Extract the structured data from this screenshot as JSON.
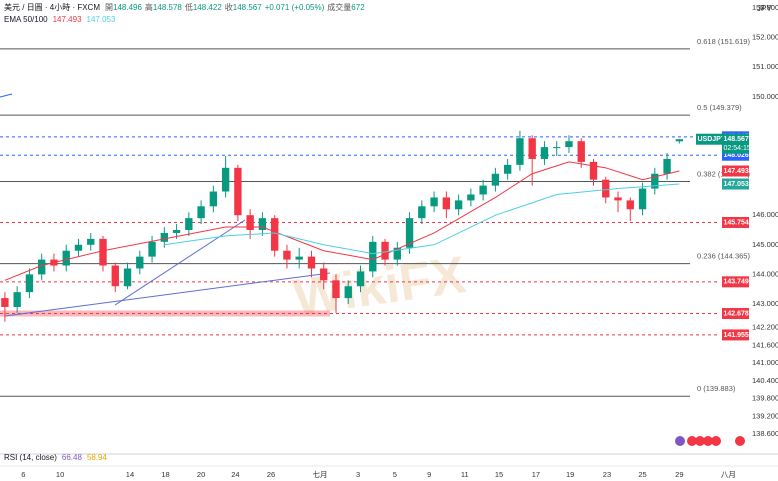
{
  "chart_data": {
    "type": "candlestick",
    "header": {
      "symbol": "美元 / 日圓 · 4小時 · FXCM",
      "ohlc_labels": [
        "開",
        "高",
        "低",
        "收"
      ],
      "change": "+0.071 (+0.05%)",
      "volume_label": "成交量",
      "volume": 672
    },
    "indicator_label": "EMA 50/100",
    "currency": "JPY",
    "watermark": "WikiFX",
    "rsi_label": "RSI (14, close)",
    "rsi_values": [
      66.48,
      58.94
    ],
    "xlim": [
      -0.4,
      60.6
    ],
    "xticks": [
      {
        "value": 1.5,
        "label": "6"
      },
      {
        "value": 4.5,
        "label": "10"
      },
      {
        "value": 10.2,
        "label": "14"
      },
      {
        "value": 13.1,
        "label": "18"
      },
      {
        "value": 16,
        "label": "20"
      },
      {
        "value": 18.8,
        "label": "24"
      },
      {
        "value": 21.7,
        "label": "26"
      },
      {
        "value": 25.7,
        "label": "七月"
      },
      {
        "value": 28.8,
        "label": "3"
      },
      {
        "value": 31.8,
        "label": "5"
      },
      {
        "value": 34.6,
        "label": "9"
      },
      {
        "value": 37.5,
        "label": "11"
      },
      {
        "value": 40.3,
        "label": "15"
      },
      {
        "value": 43.3,
        "label": "17"
      },
      {
        "value": 46.1,
        "label": "19"
      },
      {
        "value": 49.1,
        "label": "23"
      },
      {
        "value": 52,
        "label": "25"
      },
      {
        "value": 55,
        "label": "29"
      },
      {
        "value": 59,
        "label": "八月"
      }
    ],
    "ylim": [
      138.0,
      153.27
    ],
    "yticks": [
      {
        "value": 153,
        "label": "153.000"
      },
      {
        "value": 152,
        "label": "152.000"
      },
      {
        "value": 151,
        "label": "151.000"
      },
      {
        "value": 150,
        "label": "150.000"
      },
      {
        "value": 146,
        "label": "146.000"
      },
      {
        "value": 145,
        "label": "145.000"
      },
      {
        "value": 144,
        "label": "144.000"
      },
      {
        "value": 143,
        "label": "143.000"
      },
      {
        "value": 142.2,
        "label": "142.200"
      },
      {
        "value": 141.6,
        "label": "141.600"
      },
      {
        "value": 141,
        "label": "141.000"
      },
      {
        "value": 140.4,
        "label": "140.400"
      },
      {
        "value": 139.8,
        "label": "139.800"
      },
      {
        "value": 139.2,
        "label": "139.200"
      },
      {
        "value": 138.6,
        "label": "138.600"
      }
    ],
    "open": [
      143.2,
      142.9,
      143.4,
      144.0,
      144.5,
      144.3,
      144.8,
      145.0,
      145.2,
      144.3,
      143.6,
      144.2,
      144.6,
      145.1,
      145.4,
      145.5,
      145.9,
      146.3,
      146.8,
      147.6,
      146.0,
      145.5,
      145.9,
      144.8,
      144.5,
      144.6,
      144.2,
      143.8,
      143.2,
      143.6,
      144.1,
      145.1,
      144.5,
      144.9,
      145.9,
      146.3,
      146.6,
      146.2,
      146.5,
      146.7,
      147.0,
      147.4,
      147.7,
      148.6,
      147.9,
      148.3,
      148.3,
      148.5,
      147.8,
      147.2,
      146.6,
      146.5,
      146.2,
      146.9,
      147.4,
      148.496
    ],
    "high": [
      143.4,
      143.6,
      144.2,
      144.7,
      144.7,
      145.0,
      145.2,
      145.4,
      145.3,
      144.4,
      144.4,
      144.8,
      145.3,
      145.6,
      145.7,
      146.1,
      146.5,
      147.0,
      148.0,
      147.7,
      146.2,
      146.1,
      146.0,
      145.0,
      144.9,
      144.8,
      144.4,
      144.0,
      143.8,
      144.3,
      145.3,
      145.2,
      145.1,
      146.1,
      146.5,
      146.8,
      146.8,
      146.7,
      146.9,
      147.2,
      147.6,
      147.9,
      148.85,
      148.7,
      148.5,
      148.5,
      148.7,
      148.6,
      147.9,
      147.3,
      146.8,
      146.6,
      147.1,
      147.6,
      148.1,
      148.578
    ],
    "low": [
      142.4,
      142.7,
      143.2,
      143.8,
      144.1,
      144.1,
      144.6,
      144.8,
      144.1,
      143.4,
      143.5,
      144.0,
      144.4,
      144.9,
      145.2,
      145.3,
      145.7,
      146.1,
      146.6,
      145.8,
      145.2,
      145.3,
      144.6,
      144.2,
      144.2,
      143.9,
      143.5,
      142.7,
      143.0,
      143.4,
      143.9,
      144.3,
      144.3,
      144.7,
      145.7,
      146.1,
      145.9,
      146.0,
      146.3,
      146.5,
      146.8,
      147.2,
      147.5,
      147.0,
      147.7,
      148.0,
      148.1,
      147.6,
      147.0,
      146.4,
      146.1,
      145.8,
      146.0,
      146.7,
      147.2,
      148.422
    ],
    "close": [
      142.9,
      143.4,
      144.0,
      144.5,
      144.3,
      144.8,
      145.0,
      145.2,
      144.3,
      143.6,
      144.2,
      144.6,
      145.1,
      145.4,
      145.5,
      145.9,
      146.3,
      146.8,
      147.6,
      146.0,
      145.5,
      145.9,
      144.8,
      144.5,
      144.6,
      144.2,
      143.8,
      143.2,
      143.6,
      144.1,
      145.1,
      144.5,
      144.9,
      145.9,
      146.3,
      146.6,
      146.2,
      146.5,
      146.7,
      147.0,
      147.4,
      147.7,
      148.6,
      147.9,
      148.3,
      148.3,
      148.5,
      147.8,
      147.2,
      146.6,
      146.5,
      146.2,
      146.9,
      147.4,
      147.9,
      148.567
    ],
    "up_color": "#089981",
    "down_color": "#f23645",
    "series": [
      {
        "color": "#f23645",
        "x": [
          0,
          3,
          8,
          13,
          18,
          21,
          26,
          30,
          35,
          40,
          43,
          46,
          49,
          52,
          55
        ],
        "values": [
          143.8,
          144.3,
          144.8,
          145.2,
          145.6,
          145.6,
          144.8,
          144.5,
          145.4,
          146.6,
          147.4,
          147.8,
          147.6,
          147.2,
          147.493
        ]
      },
      {
        "color": "#4dd0e1",
        "x": [
          13,
          18,
          22,
          26,
          30,
          35,
          40,
          45,
          50,
          55
        ],
        "values": [
          145.0,
          145.3,
          145.4,
          145.0,
          144.7,
          145.0,
          146.0,
          146.7,
          146.9,
          147.053
        ]
      }
    ],
    "level_color": "#555555",
    "levels": [
      {
        "label": "0.618 (151.619)",
        "value": 151.619
      },
      {
        "label": "0.5 (149.379)",
        "value": 149.379
      },
      {
        "label": "0.382 (147.138)",
        "value": 147.138
      },
      {
        "label": "0.236 (144.365)",
        "value": 144.365
      },
      {
        "label": "0 (139.883)",
        "value": 139.883
      }
    ],
    "price_lines": [
      {
        "value": 148.647,
        "color": "#2962ff",
        "style": "dashed"
      },
      {
        "value": 148.026,
        "color": "#2962ff",
        "style": "dashed"
      },
      {
        "value": 145.754,
        "color": "#f23645",
        "style": "dashed"
      },
      {
        "value": 143.749,
        "color": "#f23645",
        "style": "dashed"
      },
      {
        "value": 142.678,
        "color": "#f23645",
        "style": "band"
      },
      {
        "value": 141.955,
        "color": "#f23645",
        "style": "dashed"
      }
    ],
    "symbol_tag": {
      "name": "USDJPY",
      "countdown": "02:54:15"
    }
  }
}
